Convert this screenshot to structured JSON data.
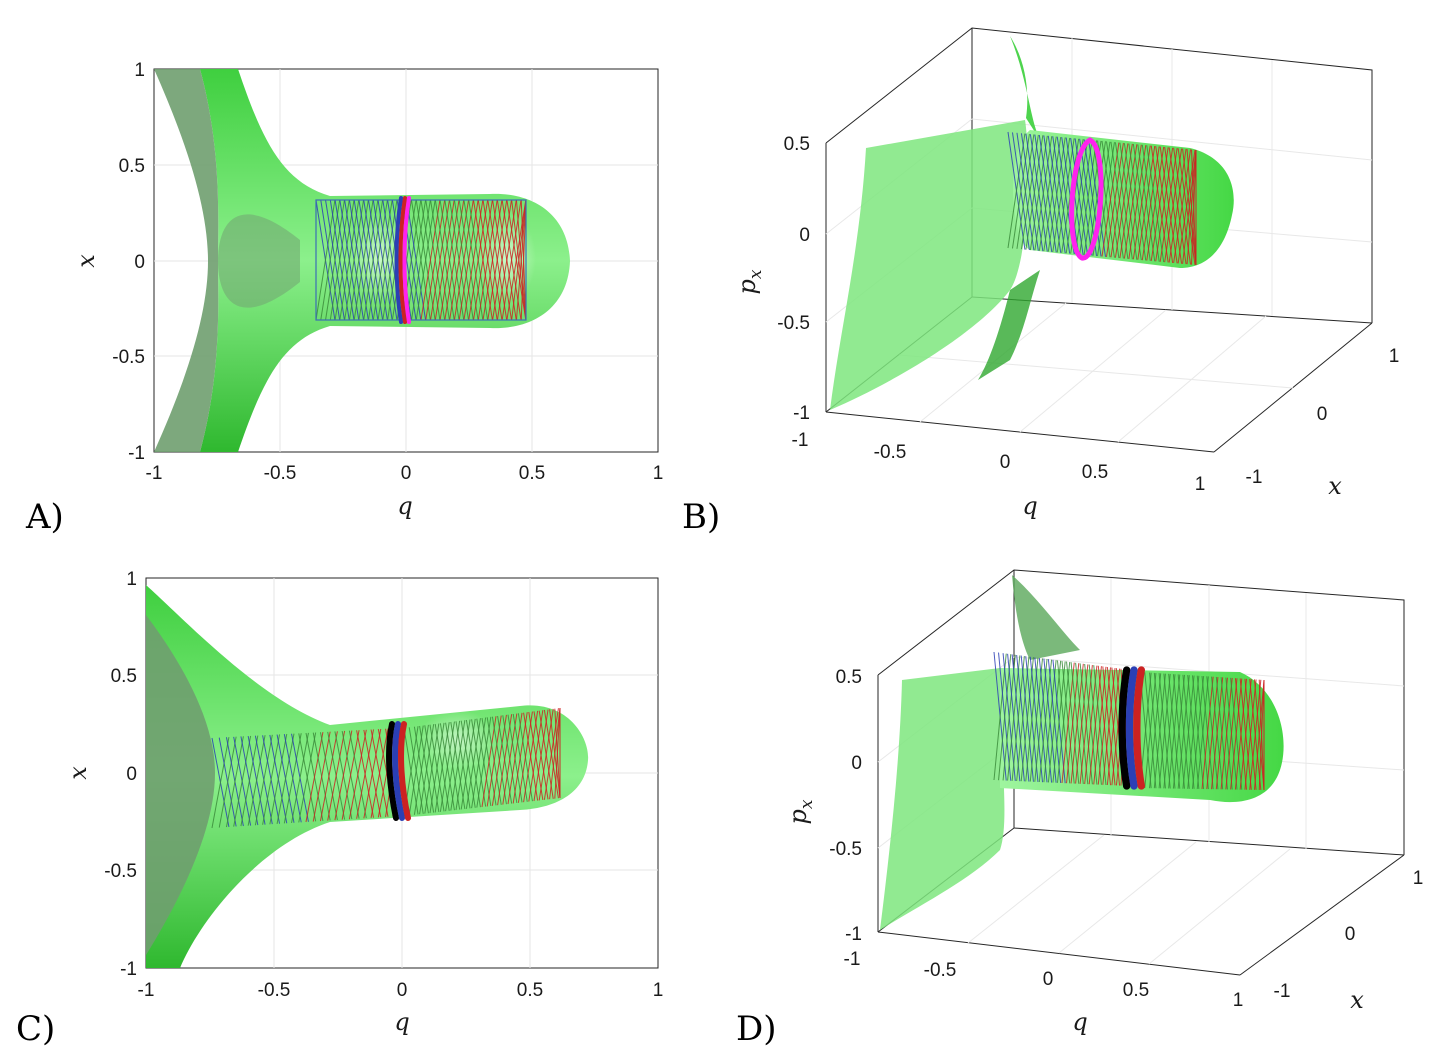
{
  "colors": {
    "surface_light": "#5ce65c",
    "surface_dark": "#6f9f6f",
    "traj_blue": "#2b3fb5",
    "traj_red": "#cc2222",
    "traj_green": "#3b8c3b",
    "magenta": "#ff22ee",
    "black": "#000000",
    "grid": "#e6e6e6"
  },
  "chart_data": [
    {
      "id": "A",
      "type": "surface-projection",
      "panel_label": "A)",
      "view": "2d-top",
      "xlabel": "q",
      "ylabel": "x",
      "xlim": [
        -1,
        1
      ],
      "ylim": [
        -1,
        1
      ],
      "xticks": [
        "-1",
        "-0.5",
        "0",
        "0.5",
        "1"
      ],
      "yticks": [
        "1",
        "0.5",
        "0",
        "-0.5",
        "-1"
      ],
      "grid": true,
      "torus": {
        "q_start": -0.35,
        "q_end": 0.48,
        "radius": 0.31
      },
      "neck_q": 0.0,
      "neck_marker": "red-blue"
    },
    {
      "id": "B",
      "type": "surface-3d",
      "panel_label": "B)",
      "view": "3d",
      "xlabel": "q",
      "ylabel": "x",
      "zlabel": "p_x",
      "zlabel_main": "p",
      "zlabel_sub": "x",
      "xticks": [
        "-1",
        "-0.5",
        "0",
        "0.5",
        "1"
      ],
      "yticks": [
        "-1",
        "0",
        "1"
      ],
      "zticks": [
        "0.5",
        "0",
        "-0.5",
        "-1"
      ],
      "grid": true,
      "neck_marker": "magenta"
    },
    {
      "id": "C",
      "type": "surface-projection",
      "panel_label": "C)",
      "view": "2d-top",
      "xlabel": "q",
      "ylabel": "x",
      "xlim": [
        -1,
        1
      ],
      "ylim": [
        -1,
        1
      ],
      "xticks": [
        "-1",
        "-0.5",
        "0",
        "0.5",
        "1"
      ],
      "yticks": [
        "1",
        "0.5",
        "0",
        "-0.5",
        "-1"
      ],
      "grid": true,
      "torus": {
        "q_start": -0.72,
        "q_end": 0.6,
        "radius": 0.3
      },
      "neck_q": -0.02,
      "neck_marker": "black-blue-red"
    },
    {
      "id": "D",
      "type": "surface-3d",
      "panel_label": "D)",
      "view": "3d",
      "xlabel": "q",
      "ylabel": "x",
      "zlabel": "p_x",
      "zlabel_main": "p",
      "zlabel_sub": "x",
      "xticks": [
        "-1",
        "-0.5",
        "0",
        "0.5",
        "1"
      ],
      "yticks": [
        "-1",
        "0",
        "1"
      ],
      "zticks": [
        "0.5",
        "0",
        "-0.5",
        "-1"
      ],
      "grid": true,
      "neck_marker": "black-blue-red"
    }
  ]
}
